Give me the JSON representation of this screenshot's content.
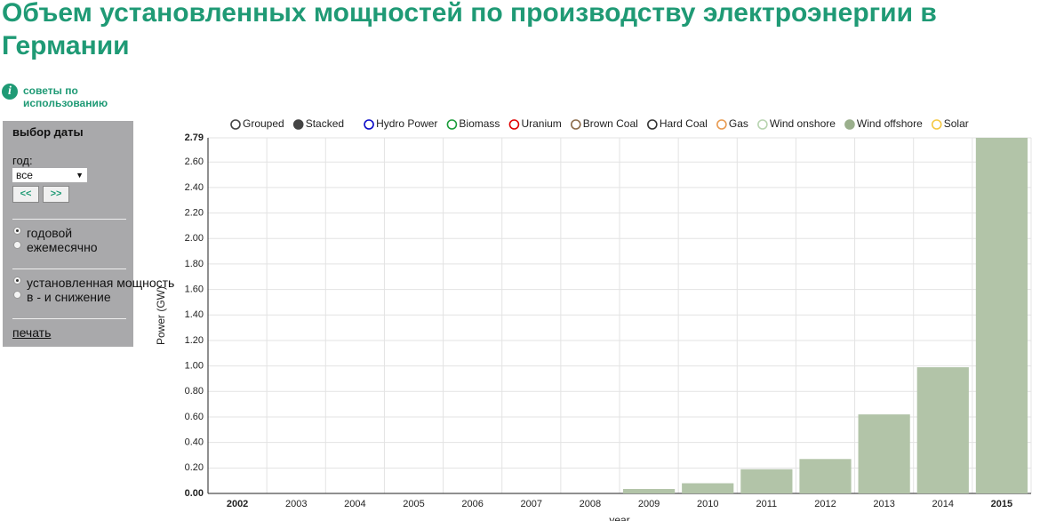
{
  "header": {
    "title": "Объем установленных мощностей по производству электроэнергии в Германии"
  },
  "help": {
    "text": "советы по использованию"
  },
  "sidebar": {
    "heading": "выбор даты",
    "year_label": "год:",
    "year_value": "все",
    "prev_button": "<<",
    "next_button": ">>",
    "period": [
      {
        "label": "годовой",
        "checked": true
      },
      {
        "label": "ежемесячно",
        "checked": false
      }
    ],
    "measure": [
      {
        "label": "установленная мощность",
        "checked": true
      },
      {
        "label": "в - и снижение",
        "checked": false
      }
    ],
    "print_link": "печать"
  },
  "chart_data": {
    "type": "bar",
    "stacked": true,
    "mode_options": [
      "Grouped",
      "Stacked"
    ],
    "mode": "Stacked",
    "y_label": "Power (GW)",
    "x_label": "year",
    "legend": [
      {
        "name": "Hydro Power",
        "color": "#0a0ac8",
        "active": false
      },
      {
        "name": "Biomass",
        "color": "#1a9c3a",
        "active": false
      },
      {
        "name": "Uranium",
        "color": "#e00000",
        "active": false
      },
      {
        "name": "Brown Coal",
        "color": "#8b6b4a",
        "active": false
      },
      {
        "name": "Hard Coal",
        "color": "#333333",
        "active": false
      },
      {
        "name": "Gas",
        "color": "#e89a50",
        "active": false
      },
      {
        "name": "Wind onshore",
        "color": "#b8d4b0",
        "active": false
      },
      {
        "name": "Wind offshore",
        "color": "#9aaf8c",
        "active": true
      },
      {
        "name": "Solar",
        "color": "#f5c842",
        "active": false
      }
    ],
    "categories": [
      "2002",
      "2003",
      "2004",
      "2005",
      "2006",
      "2007",
      "2008",
      "2009",
      "2010",
      "2011",
      "2012",
      "2013",
      "2014",
      "2015"
    ],
    "series": [
      {
        "name": "Wind offshore",
        "color": "#b2c4a8",
        "values": [
          0,
          0,
          0,
          0,
          0,
          0,
          0,
          0.035,
          0.08,
          0.19,
          0.27,
          0.62,
          0.99,
          2.79
        ]
      }
    ],
    "ylim": [
      0,
      2.79
    ],
    "yticks": [
      {
        "value": 0,
        "label": "0.00"
      },
      {
        "value": 0.2,
        "label": "0.20"
      },
      {
        "value": 0.4,
        "label": "0.40"
      },
      {
        "value": 0.6,
        "label": "0.60"
      },
      {
        "value": 0.8,
        "label": "0.80"
      },
      {
        "value": 1,
        "label": "1.00"
      },
      {
        "value": 1.2,
        "label": "1.20"
      },
      {
        "value": 1.4,
        "label": "1.40"
      },
      {
        "value": 1.6,
        "label": "1.60"
      },
      {
        "value": 1.8,
        "label": "1.80"
      },
      {
        "value": 2,
        "label": "2.00"
      },
      {
        "value": 2.2,
        "label": "2.20"
      },
      {
        "value": 2.4,
        "label": "2.40"
      },
      {
        "value": 2.6,
        "label": "2.60"
      },
      {
        "value": 2.79,
        "label": "2.79"
      }
    ],
    "grid": true
  }
}
